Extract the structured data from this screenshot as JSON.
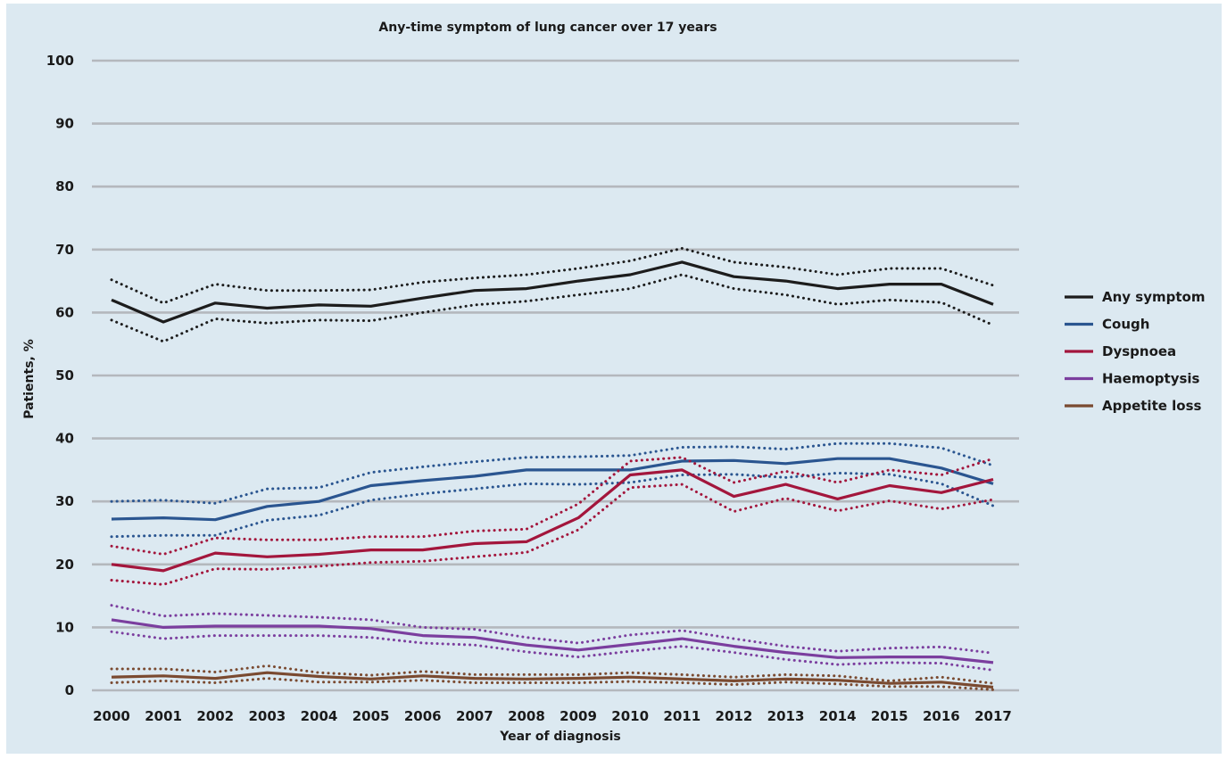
{
  "chart_data": {
    "type": "line",
    "title": "Any-time symptom of lung cancer over 17 years",
    "xlabel": "Year of diagnosis",
    "ylabel": "Patients, %",
    "ylim": [
      0,
      100
    ],
    "yticks": [
      0,
      10,
      20,
      30,
      40,
      50,
      60,
      70,
      80,
      90,
      100
    ],
    "x": [
      2000,
      2001,
      2002,
      2003,
      2004,
      2005,
      2006,
      2007,
      2008,
      2009,
      2010,
      2011,
      2012,
      2013,
      2014,
      2015,
      2016,
      2017
    ],
    "grid": true,
    "legend_position": "right",
    "series": [
      {
        "name": "Any symptom",
        "color": "#1c1c1c",
        "values": [
          62,
          58.5,
          61.5,
          60.7,
          61.2,
          61,
          62.3,
          63.5,
          63.8,
          65,
          66,
          68,
          65.7,
          65,
          63.8,
          64.5,
          64.5,
          61.3
        ],
        "upper": [
          65.2,
          61.5,
          64.5,
          63.5,
          63.5,
          63.6,
          64.8,
          65.5,
          66,
          67,
          68.2,
          70.2,
          68,
          67.2,
          66,
          67,
          67,
          64.3
        ],
        "lower": [
          58.8,
          55.4,
          59,
          58.3,
          58.8,
          58.7,
          60,
          61.2,
          61.8,
          62.8,
          63.8,
          66,
          63.8,
          62.8,
          61.3,
          62,
          61.6,
          58
        ]
      },
      {
        "name": "Cough",
        "color": "#2a5590",
        "values": [
          27.2,
          27.4,
          27.1,
          29.2,
          30,
          32.5,
          33.3,
          34,
          35,
          35,
          35,
          36.4,
          36.5,
          36,
          36.8,
          36.8,
          35.3,
          32.8
        ],
        "upper": [
          30,
          30.2,
          29.7,
          32,
          32.2,
          34.6,
          35.5,
          36.3,
          37,
          37.1,
          37.3,
          38.6,
          38.7,
          38.3,
          39.2,
          39.2,
          38.5,
          35.7
        ],
        "lower": [
          24.4,
          24.6,
          24.6,
          27,
          27.8,
          30.2,
          31.2,
          32,
          32.8,
          32.7,
          33,
          34.2,
          34.3,
          33.8,
          34.5,
          34.3,
          32.8,
          29.3
        ]
      },
      {
        "name": "Dyspnoea",
        "color": "#a3163c",
        "values": [
          20,
          19,
          21.8,
          21.2,
          21.6,
          22.3,
          22.3,
          23.3,
          23.6,
          27.4,
          34.2,
          35,
          30.8,
          32.7,
          30.4,
          32.5,
          31.4,
          33.5
        ],
        "upper": [
          22.9,
          21.6,
          24.2,
          23.9,
          23.9,
          24.4,
          24.4,
          25.3,
          25.6,
          29.6,
          36.4,
          37,
          33,
          34.8,
          33,
          35,
          34.2,
          36.8
        ],
        "lower": [
          17.5,
          16.8,
          19.3,
          19.2,
          19.7,
          20.3,
          20.5,
          21.2,
          21.9,
          25.5,
          32.2,
          32.7,
          28.4,
          30.5,
          28.5,
          30.1,
          28.8,
          30.3
        ]
      },
      {
        "name": "Haemoptysis",
        "color": "#7b3e9e",
        "values": [
          11.2,
          10,
          10.2,
          10.2,
          10.2,
          9.8,
          8.7,
          8.4,
          7.2,
          6.4,
          7.3,
          8.2,
          7,
          6,
          5.2,
          5.3,
          5.3,
          4.4
        ],
        "upper": [
          13.5,
          11.8,
          12.2,
          11.9,
          11.6,
          11.2,
          10,
          9.7,
          8.4,
          7.5,
          8.8,
          9.5,
          8.2,
          7,
          6.2,
          6.7,
          6.9,
          5.9
        ],
        "lower": [
          9.3,
          8.2,
          8.7,
          8.7,
          8.7,
          8.4,
          7.5,
          7.2,
          6.1,
          5.3,
          6.2,
          7,
          6,
          4.9,
          4.1,
          4.4,
          4.3,
          3.2
        ]
      },
      {
        "name": "Appetite loss",
        "color": "#7a4a30",
        "values": [
          2.1,
          2.3,
          1.9,
          2.8,
          2.2,
          1.8,
          2.3,
          1.9,
          1.8,
          1.9,
          2.1,
          1.8,
          1.5,
          1.8,
          1.6,
          1.1,
          1.3,
          0.5
        ],
        "upper": [
          3.4,
          3.4,
          2.9,
          3.9,
          2.8,
          2.4,
          3,
          2.5,
          2.5,
          2.5,
          2.8,
          2.5,
          2.1,
          2.5,
          2.3,
          1.5,
          2.1,
          1.1
        ],
        "lower": [
          1.2,
          1.5,
          1.2,
          1.9,
          1.3,
          1.3,
          1.6,
          1.2,
          1.2,
          1.2,
          1.4,
          1.2,
          0.9,
          1.3,
          1,
          0.6,
          0.6,
          0.1
        ]
      }
    ]
  }
}
